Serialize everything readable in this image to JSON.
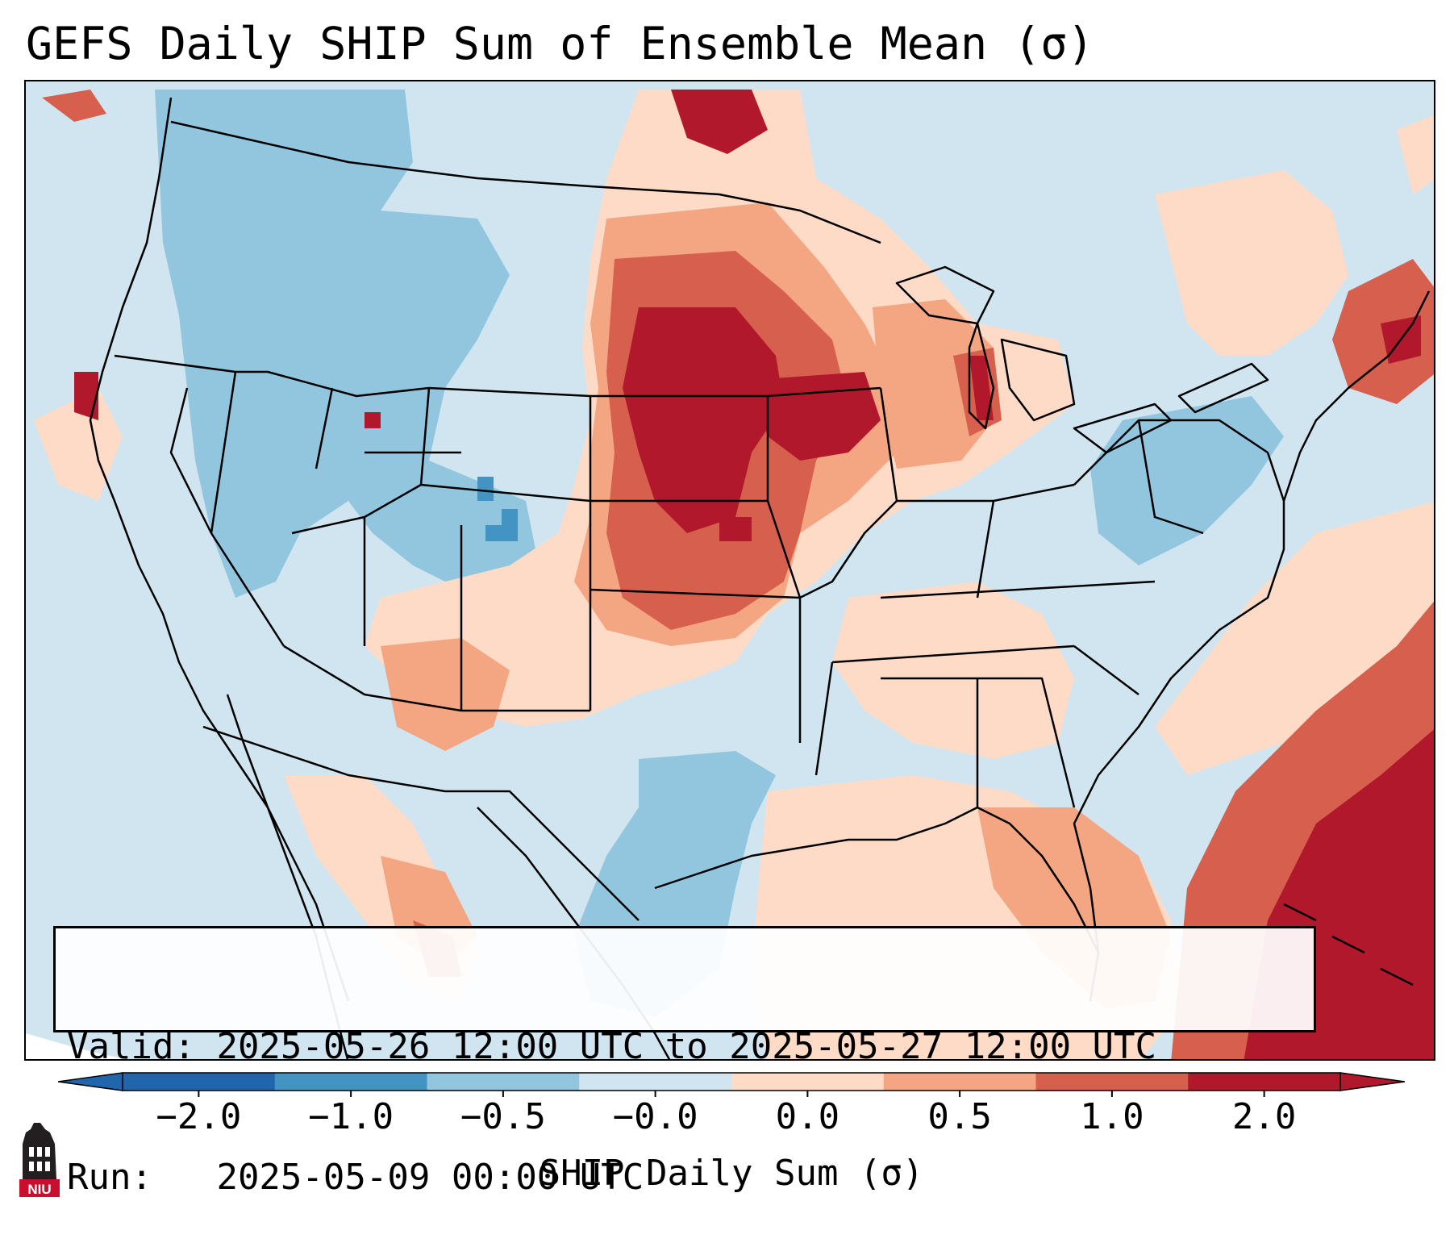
{
  "title": "GEFS Daily SHIP Sum of Ensemble Mean (σ)",
  "info": {
    "valid_label": "Valid:",
    "valid_value": "2025-05-26 12:00 UTC to 2025-05-27 12:00 UTC",
    "run_label": "Run:",
    "run_value": "2025-05-09 00:00 UTC"
  },
  "colorbar": {
    "label": "SHIP Daily Sum (σ)",
    "ticks": [
      "−2.0",
      "−1.0",
      "−0.5",
      "−0.0",
      "0.0",
      "0.5",
      "1.0",
      "2.0"
    ],
    "colors": [
      "#2166ac",
      "#4393c3",
      "#92c5de",
      "#d1e5f0",
      "#fddbc7",
      "#f4a582",
      "#d6604d",
      "#b2182b"
    ],
    "extend": "both"
  },
  "map": {
    "background_color": "#d1e5f0",
    "border_color": "#000000"
  },
  "logo": {
    "text": "NIU",
    "color": "#c8102e"
  }
}
